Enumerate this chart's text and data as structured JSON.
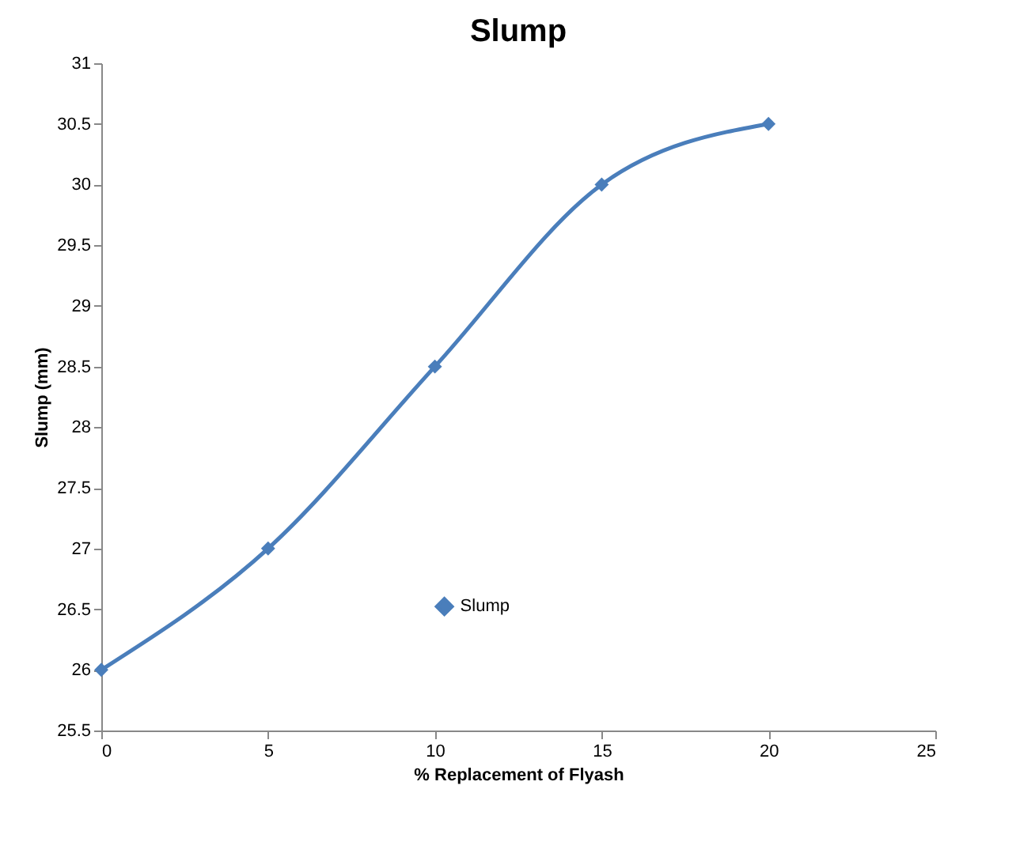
{
  "chart_data": {
    "type": "line",
    "title": "Slump",
    "xlabel": "% Replacement of Flyash",
    "ylabel": "Slump (mm)",
    "x": [
      0,
      5,
      10,
      15,
      20
    ],
    "series": [
      {
        "name": "Slump",
        "color": "#4a7ebb",
        "values": [
          26,
          27,
          28.5,
          30,
          30.5
        ]
      }
    ],
    "xlim": [
      0,
      25
    ],
    "xticks": [
      0,
      5,
      10,
      15,
      20,
      25
    ],
    "ylim": [
      25.5,
      31
    ],
    "yticks": [
      25.5,
      26,
      26.5,
      27,
      27.5,
      28,
      28.5,
      29,
      29.5,
      30,
      30.5,
      31
    ],
    "grid": false,
    "legend": "bottom",
    "marker": "diamond",
    "line_style": "solid"
  }
}
